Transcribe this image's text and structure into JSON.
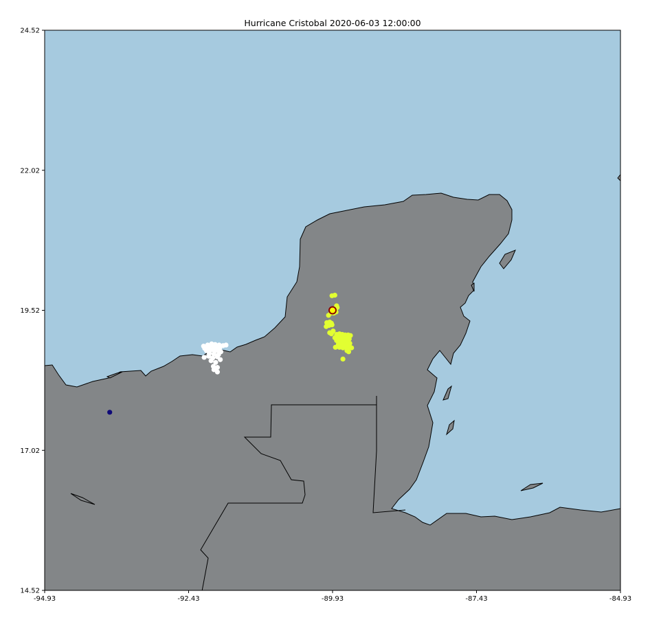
{
  "title": "Hurricane Cristobal 2020-06-03 12:00:00",
  "colors": {
    "ocean": "#a6cadf",
    "land": "#838688",
    "coast": "#000000",
    "cluster_white": "#ffffff",
    "cluster_yellow": "#e2ff32",
    "center_marker_edge": "#8b0000",
    "center_marker_fill": "#ffff00",
    "single_point": "#0f0a78"
  },
  "chart_data": {
    "type": "scatter",
    "title": "Hurricane Cristobal 2020-06-03 12:00:00",
    "xlabel": "",
    "ylabel": "",
    "xlim": [
      -94.93,
      -84.93
    ],
    "ylim": [
      14.52,
      24.52
    ],
    "x_ticks": [
      "-94.93",
      "-92.43",
      "-89.93",
      "-87.43",
      "-84.93"
    ],
    "y_ticks": [
      "24.52",
      "22.02",
      "19.52",
      "17.02",
      "14.52"
    ],
    "grid": false,
    "storm_center": {
      "lon": -89.93,
      "lat": 19.52
    },
    "series": [
      {
        "color": "#ffffff",
        "points": [
          [
            -92.17,
            18.88
          ],
          [
            -92.1,
            18.9
          ],
          [
            -92.03,
            18.92
          ],
          [
            -91.97,
            18.91
          ],
          [
            -91.9,
            18.9
          ],
          [
            -91.83,
            18.89
          ],
          [
            -91.78,
            18.9
          ],
          [
            -92.15,
            18.84
          ],
          [
            -92.08,
            18.85
          ],
          [
            -92.0,
            18.84
          ],
          [
            -91.95,
            18.86
          ],
          [
            -91.89,
            18.85
          ],
          [
            -92.12,
            18.8
          ],
          [
            -92.05,
            18.81
          ],
          [
            -91.98,
            18.79
          ],
          [
            -91.92,
            18.8
          ],
          [
            -91.87,
            18.78
          ],
          [
            -92.07,
            18.75
          ],
          [
            -91.99,
            18.74
          ],
          [
            -91.91,
            18.73
          ],
          [
            -92.16,
            18.68
          ],
          [
            -92.08,
            18.7
          ],
          [
            -92.01,
            18.67
          ],
          [
            -91.93,
            18.69
          ],
          [
            -91.88,
            18.64
          ],
          [
            -92.04,
            18.62
          ],
          [
            -91.96,
            18.59
          ],
          [
            -92.0,
            18.52
          ],
          [
            -91.93,
            18.5
          ],
          [
            -91.99,
            18.46
          ],
          [
            -91.93,
            18.42
          ],
          [
            -92.04,
            18.9
          ],
          [
            -91.95,
            18.88
          ]
        ]
      },
      {
        "color": "#e2ff32",
        "points": [
          [
            -89.94,
            19.78
          ],
          [
            -89.89,
            19.79
          ],
          [
            -89.86,
            19.6
          ],
          [
            -89.85,
            19.57
          ],
          [
            -89.93,
            19.55
          ],
          [
            -89.88,
            19.55
          ],
          [
            -89.96,
            19.47
          ],
          [
            -89.91,
            19.47
          ],
          [
            -89.87,
            19.49
          ],
          [
            -90.0,
            19.43
          ],
          [
            -90.03,
            19.3
          ],
          [
            -89.98,
            19.31
          ],
          [
            -89.95,
            19.29
          ],
          [
            -90.04,
            19.23
          ],
          [
            -89.99,
            19.25
          ],
          [
            -89.94,
            19.26
          ],
          [
            -89.92,
            19.15
          ],
          [
            -89.98,
            19.12
          ],
          [
            -89.95,
            19.1
          ],
          [
            -89.86,
            19.09
          ],
          [
            -89.81,
            19.1
          ],
          [
            -89.76,
            19.09
          ],
          [
            -89.71,
            19.08
          ],
          [
            -89.66,
            19.08
          ],
          [
            -89.62,
            19.07
          ],
          [
            -89.89,
            19.03
          ],
          [
            -89.84,
            19.04
          ],
          [
            -89.79,
            19.03
          ],
          [
            -89.74,
            19.02
          ],
          [
            -89.69,
            19.02
          ],
          [
            -89.64,
            19.01
          ],
          [
            -89.86,
            18.98
          ],
          [
            -89.81,
            18.97
          ],
          [
            -89.76,
            18.98
          ],
          [
            -89.71,
            18.96
          ],
          [
            -89.66,
            18.97
          ],
          [
            -89.63,
            18.93
          ],
          [
            -89.83,
            18.91
          ],
          [
            -89.78,
            18.92
          ],
          [
            -89.73,
            18.9
          ],
          [
            -89.68,
            18.91
          ],
          [
            -89.64,
            18.89
          ],
          [
            -89.88,
            18.86
          ],
          [
            -89.81,
            18.86
          ],
          [
            -89.75,
            18.85
          ],
          [
            -89.7,
            18.86
          ],
          [
            -89.65,
            18.84
          ],
          [
            -89.6,
            18.85
          ],
          [
            -89.68,
            18.8
          ],
          [
            -89.65,
            18.78
          ],
          [
            -89.75,
            18.65
          ]
        ]
      },
      {
        "color": "#0f0a78",
        "points": [
          [
            -93.8,
            17.7
          ]
        ]
      }
    ]
  }
}
